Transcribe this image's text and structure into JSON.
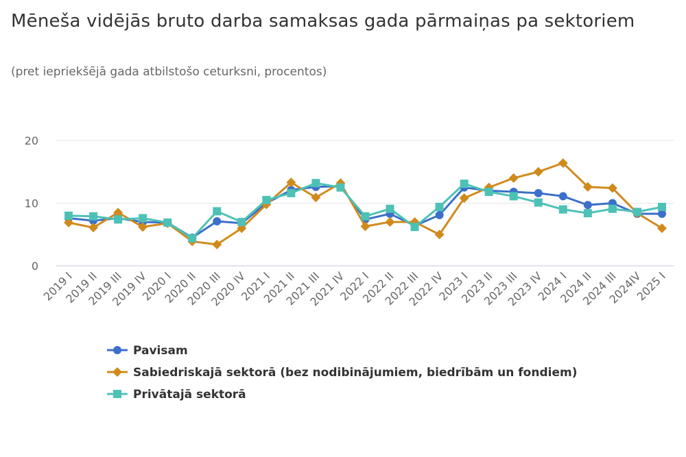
{
  "chart_data": {
    "type": "line",
    "title": "Mēneša vidējās bruto darba samaksas gada pārmaiņas pa sektoriem",
    "subtitle": "(pret iepriekšējā gada atbilstošo ceturksni, procentos)",
    "xlabel": "",
    "ylabel": "",
    "ylim": [
      0,
      20
    ],
    "yticks": [
      0,
      10,
      20
    ],
    "grid": true,
    "legend_position": "bottom",
    "categories": [
      "2019 I",
      "2019 II",
      "2019 III",
      "2019 IV",
      "2020 I",
      "2020 II",
      "2020 III",
      "2020 IV",
      "2021 I",
      "2021 II",
      "2021 III",
      "2021 IV",
      "2022 I",
      "2022 II",
      "2022 III",
      "2022 IV",
      "2023 I",
      "2023 II",
      "2023 III",
      "2023 IV",
      "2024 I",
      "2024 II",
      "2024 III",
      "2024IV",
      "2025 I"
    ],
    "series": [
      {
        "name": "Pavisam",
        "color": "#3b6fc9",
        "marker": "circle",
        "values": [
          7.6,
          7.2,
          7.6,
          7.0,
          6.9,
          4.5,
          7.1,
          6.8,
          10.0,
          12.1,
          12.6,
          12.7,
          7.4,
          8.3,
          6.4,
          8.1,
          12.5,
          12.0,
          11.8,
          11.6,
          11.1,
          9.7,
          10.0,
          8.3,
          8.3
        ]
      },
      {
        "name": "Sabiedriskajā sektorā (bez nodibinājumiem, biedrībām un fondiem)",
        "color": "#d08a1c",
        "marker": "diamond",
        "values": [
          6.9,
          6.1,
          8.5,
          6.2,
          6.8,
          3.9,
          3.4,
          6.0,
          9.8,
          13.3,
          10.9,
          13.2,
          6.3,
          7.0,
          7.0,
          5.0,
          10.8,
          12.5,
          14.0,
          15.0,
          16.4,
          12.6,
          12.4,
          8.4,
          6.0
        ]
      },
      {
        "name": "Privātajā sektorā",
        "color": "#4dc1b6",
        "marker": "square",
        "values": [
          8.0,
          7.9,
          7.4,
          7.6,
          6.9,
          4.4,
          8.7,
          7.0,
          10.5,
          11.6,
          13.2,
          12.5,
          7.9,
          9.1,
          6.2,
          9.4,
          13.1,
          11.8,
          11.1,
          10.1,
          9.0,
          8.4,
          9.1,
          8.6,
          9.4
        ]
      }
    ]
  }
}
